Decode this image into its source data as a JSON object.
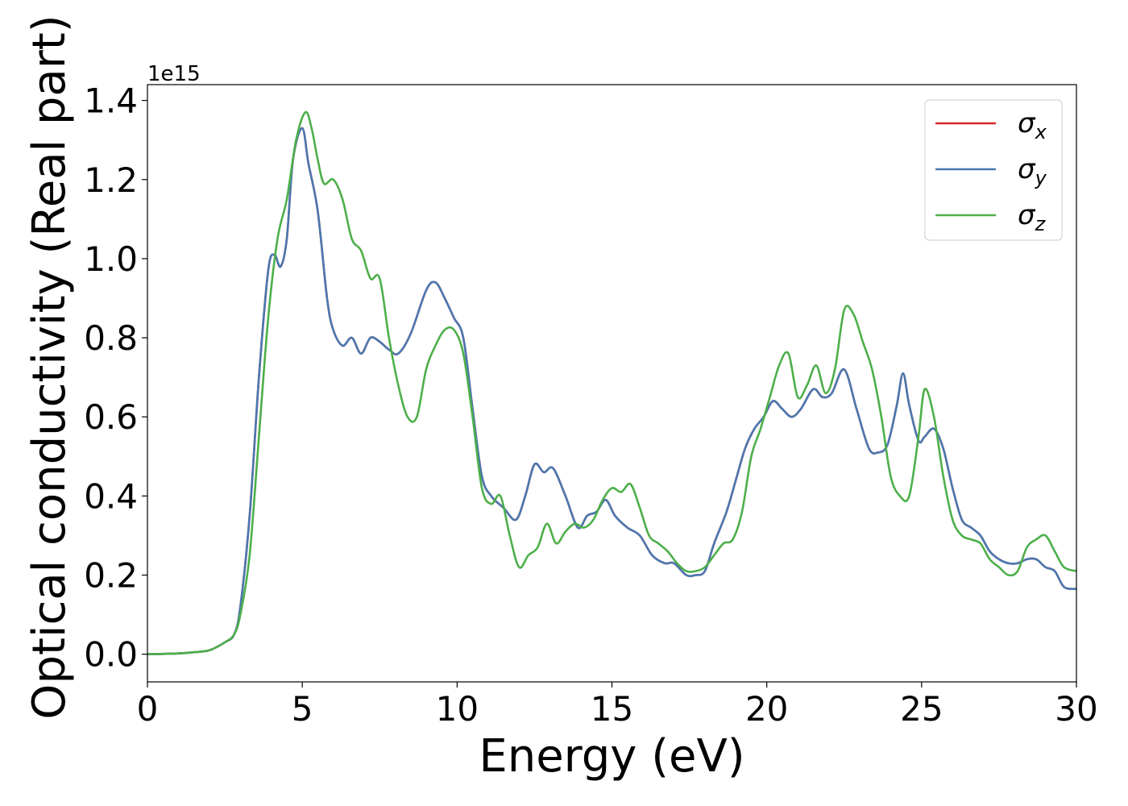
{
  "chart_data": {
    "type": "line",
    "xlabel": "Energy (eV)",
    "ylabel": "Optical conductivity (Real part)",
    "y_offset_text": "1e15",
    "xlim": [
      0,
      30
    ],
    "ylim": [
      -0.07,
      1.44
    ],
    "x_ticks": [
      0,
      5,
      10,
      15,
      20,
      25,
      30
    ],
    "x_tick_labels": [
      "0",
      "5",
      "10",
      "15",
      "20",
      "25",
      "30"
    ],
    "y_ticks": [
      0.0,
      0.2,
      0.4,
      0.6,
      0.8,
      1.0,
      1.2,
      1.4
    ],
    "y_tick_labels": [
      "0.0",
      "0.2",
      "0.4",
      "0.6",
      "0.8",
      "1.0",
      "1.2",
      "1.4"
    ],
    "grid": false,
    "legend_position": "top-right",
    "series": [
      {
        "name": "x",
        "label_symbol": "σ",
        "color": "#d62728",
        "x": [
          0,
          1,
          1.5,
          2,
          2.5,
          2.8,
          3.0,
          3.3,
          3.6,
          3.9,
          4.1,
          4.3,
          4.5,
          4.7,
          5.0,
          5.2,
          5.5,
          5.8,
          6.0,
          6.3,
          6.6,
          6.9,
          7.2,
          7.5,
          7.8,
          8.1,
          8.5,
          9.0,
          9.3,
          9.6,
          9.9,
          10.2,
          10.5,
          10.8,
          11.1,
          11.5,
          11.9,
          12.2,
          12.5,
          12.8,
          13.1,
          13.5,
          13.9,
          14.2,
          14.5,
          14.8,
          15.1,
          15.5,
          15.9,
          16.3,
          16.7,
          17.0,
          17.4,
          17.7,
          18.0,
          18.3,
          18.7,
          19.0,
          19.3,
          19.6,
          19.9,
          20.2,
          20.5,
          20.8,
          21.1,
          21.5,
          21.8,
          22.1,
          22.5,
          22.9,
          23.3,
          23.6,
          23.9,
          24.2,
          24.4,
          24.6,
          24.9,
          25.1,
          25.4,
          25.7,
          26.0,
          26.3,
          26.6,
          26.9,
          27.2,
          27.5,
          27.8,
          28.1,
          28.4,
          28.7,
          29.0,
          29.3,
          29.6,
          30
        ],
        "values": [
          0,
          0.002,
          0.005,
          0.01,
          0.03,
          0.05,
          0.12,
          0.35,
          0.7,
          0.97,
          1.01,
          0.98,
          1.05,
          1.25,
          1.33,
          1.24,
          1.12,
          0.9,
          0.82,
          0.78,
          0.8,
          0.76,
          0.8,
          0.79,
          0.77,
          0.76,
          0.81,
          0.92,
          0.94,
          0.9,
          0.85,
          0.8,
          0.62,
          0.45,
          0.4,
          0.37,
          0.34,
          0.4,
          0.48,
          0.46,
          0.47,
          0.4,
          0.32,
          0.35,
          0.36,
          0.39,
          0.35,
          0.32,
          0.3,
          0.25,
          0.23,
          0.23,
          0.2,
          0.2,
          0.21,
          0.28,
          0.36,
          0.44,
          0.52,
          0.57,
          0.6,
          0.64,
          0.62,
          0.6,
          0.62,
          0.67,
          0.65,
          0.66,
          0.72,
          0.62,
          0.52,
          0.51,
          0.53,
          0.63,
          0.71,
          0.63,
          0.54,
          0.55,
          0.57,
          0.52,
          0.42,
          0.34,
          0.32,
          0.3,
          0.26,
          0.24,
          0.23,
          0.23,
          0.24,
          0.24,
          0.22,
          0.21,
          0.17,
          0.165
        ]
      },
      {
        "name": "y",
        "label_symbol": "σ",
        "color": "#4a78b0",
        "x": [
          0,
          1,
          1.5,
          2,
          2.5,
          2.8,
          3.0,
          3.3,
          3.6,
          3.9,
          4.1,
          4.3,
          4.5,
          4.7,
          5.0,
          5.2,
          5.5,
          5.8,
          6.0,
          6.3,
          6.6,
          6.9,
          7.2,
          7.5,
          7.8,
          8.1,
          8.5,
          9.0,
          9.3,
          9.6,
          9.9,
          10.2,
          10.5,
          10.8,
          11.1,
          11.5,
          11.9,
          12.2,
          12.5,
          12.8,
          13.1,
          13.5,
          13.9,
          14.2,
          14.5,
          14.8,
          15.1,
          15.5,
          15.9,
          16.3,
          16.7,
          17.0,
          17.4,
          17.7,
          18.0,
          18.3,
          18.7,
          19.0,
          19.3,
          19.6,
          19.9,
          20.2,
          20.5,
          20.8,
          21.1,
          21.5,
          21.8,
          22.1,
          22.5,
          22.9,
          23.3,
          23.6,
          23.9,
          24.2,
          24.4,
          24.6,
          24.9,
          25.1,
          25.4,
          25.7,
          26.0,
          26.3,
          26.6,
          26.9,
          27.2,
          27.5,
          27.8,
          28.1,
          28.4,
          28.7,
          29.0,
          29.3,
          29.6,
          30
        ],
        "values": [
          0,
          0.002,
          0.005,
          0.01,
          0.03,
          0.05,
          0.12,
          0.35,
          0.7,
          0.97,
          1.01,
          0.98,
          1.05,
          1.25,
          1.33,
          1.24,
          1.12,
          0.9,
          0.82,
          0.78,
          0.8,
          0.76,
          0.8,
          0.79,
          0.77,
          0.76,
          0.81,
          0.92,
          0.94,
          0.9,
          0.85,
          0.8,
          0.62,
          0.45,
          0.4,
          0.37,
          0.34,
          0.4,
          0.48,
          0.46,
          0.47,
          0.4,
          0.32,
          0.35,
          0.36,
          0.39,
          0.35,
          0.32,
          0.3,
          0.25,
          0.23,
          0.23,
          0.2,
          0.2,
          0.21,
          0.28,
          0.36,
          0.44,
          0.52,
          0.57,
          0.6,
          0.64,
          0.62,
          0.6,
          0.62,
          0.67,
          0.65,
          0.66,
          0.72,
          0.62,
          0.52,
          0.51,
          0.53,
          0.63,
          0.71,
          0.63,
          0.54,
          0.55,
          0.57,
          0.52,
          0.42,
          0.34,
          0.32,
          0.3,
          0.26,
          0.24,
          0.23,
          0.23,
          0.24,
          0.24,
          0.22,
          0.21,
          0.17,
          0.165
        ]
      },
      {
        "name": "z",
        "label_symbol": "σ",
        "color": "#4daf4a",
        "x": [
          0,
          1,
          1.5,
          2,
          2.5,
          2.8,
          3.0,
          3.3,
          3.6,
          3.9,
          4.2,
          4.5,
          4.8,
          5.1,
          5.3,
          5.5,
          5.7,
          6.0,
          6.3,
          6.6,
          6.9,
          7.2,
          7.5,
          7.8,
          8.1,
          8.4,
          8.7,
          9.0,
          9.3,
          9.6,
          9.9,
          10.2,
          10.5,
          10.8,
          11.1,
          11.4,
          11.7,
          12.0,
          12.3,
          12.6,
          12.9,
          13.2,
          13.5,
          13.8,
          14.1,
          14.4,
          14.7,
          15.0,
          15.3,
          15.6,
          15.9,
          16.2,
          16.5,
          16.8,
          17.1,
          17.4,
          17.7,
          18.0,
          18.3,
          18.6,
          18.9,
          19.2,
          19.5,
          19.8,
          20.1,
          20.4,
          20.7,
          21.0,
          21.3,
          21.6,
          21.9,
          22.2,
          22.5,
          22.8,
          23.1,
          23.4,
          23.7,
          24.0,
          24.3,
          24.6,
          24.9,
          25.1,
          25.4,
          25.7,
          26.0,
          26.3,
          26.6,
          26.9,
          27.2,
          27.5,
          27.8,
          28.1,
          28.4,
          28.7,
          29.0,
          29.3,
          29.6,
          30
        ],
        "values": [
          0,
          0.002,
          0.005,
          0.01,
          0.03,
          0.05,
          0.1,
          0.25,
          0.55,
          0.85,
          1.05,
          1.15,
          1.3,
          1.37,
          1.33,
          1.25,
          1.19,
          1.2,
          1.15,
          1.05,
          1.02,
          0.95,
          0.95,
          0.8,
          0.68,
          0.6,
          0.6,
          0.72,
          0.78,
          0.82,
          0.82,
          0.76,
          0.6,
          0.42,
          0.38,
          0.4,
          0.3,
          0.22,
          0.25,
          0.27,
          0.33,
          0.28,
          0.31,
          0.33,
          0.32,
          0.34,
          0.39,
          0.42,
          0.41,
          0.43,
          0.37,
          0.3,
          0.28,
          0.26,
          0.23,
          0.21,
          0.21,
          0.22,
          0.25,
          0.28,
          0.29,
          0.36,
          0.5,
          0.57,
          0.65,
          0.73,
          0.76,
          0.65,
          0.68,
          0.73,
          0.66,
          0.72,
          0.87,
          0.86,
          0.79,
          0.72,
          0.6,
          0.45,
          0.4,
          0.4,
          0.55,
          0.67,
          0.6,
          0.45,
          0.34,
          0.3,
          0.29,
          0.28,
          0.24,
          0.22,
          0.2,
          0.21,
          0.27,
          0.29,
          0.3,
          0.26,
          0.22,
          0.21
        ]
      }
    ]
  }
}
